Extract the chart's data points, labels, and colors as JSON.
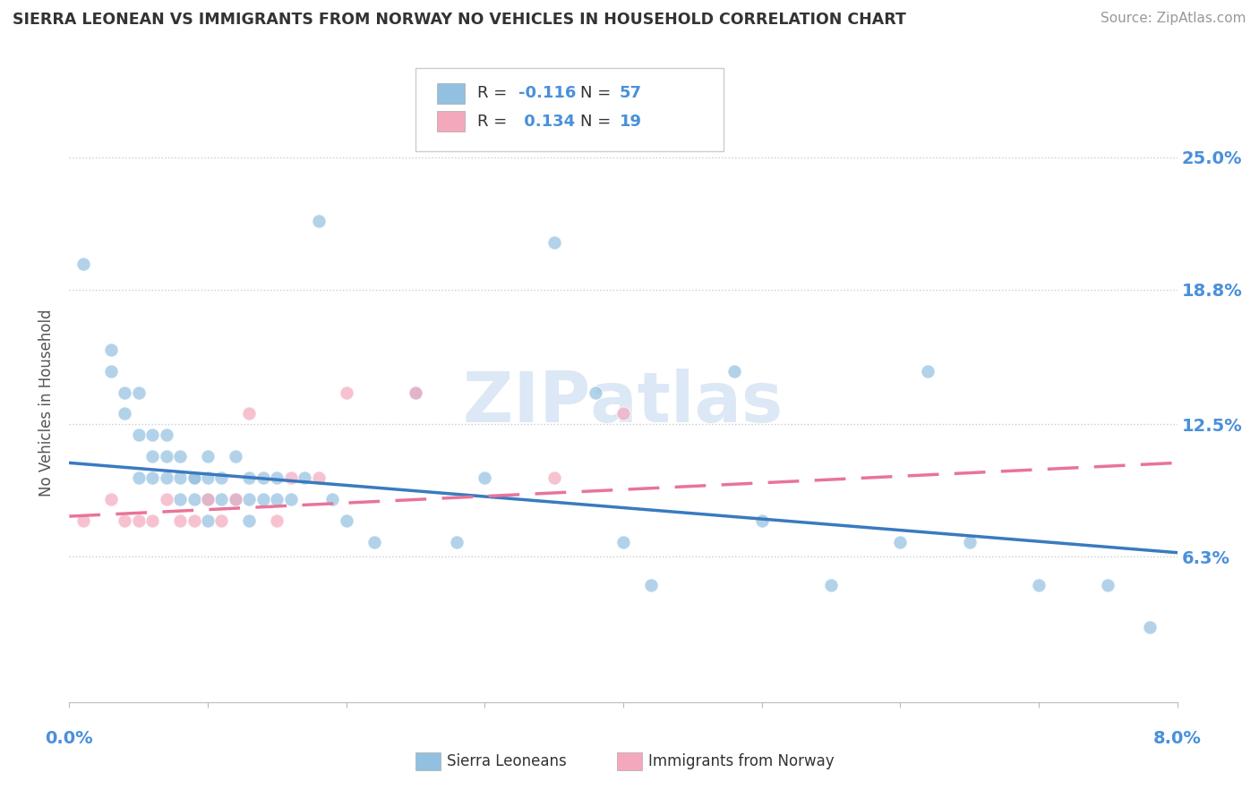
{
  "title": "SIERRA LEONEAN VS IMMIGRANTS FROM NORWAY NO VEHICLES IN HOUSEHOLD CORRELATION CHART",
  "source": "Source: ZipAtlas.com",
  "ylabel": "No Vehicles in Household",
  "ytick_labels": [
    "6.3%",
    "12.5%",
    "18.8%",
    "25.0%"
  ],
  "ytick_values": [
    0.063,
    0.125,
    0.188,
    0.25
  ],
  "xlim": [
    0.0,
    0.08
  ],
  "ylim": [
    -0.005,
    0.275
  ],
  "color_blue": "#92c0e0",
  "color_pink": "#f4a8bc",
  "color_line_blue": "#3a7abf",
  "color_line_pink": "#e8749a",
  "color_label": "#4a90d9",
  "color_grid": "#cccccc",
  "watermark_color": "#dce8f5",
  "sierra_x": [
    0.001,
    0.003,
    0.003,
    0.004,
    0.004,
    0.005,
    0.005,
    0.005,
    0.006,
    0.006,
    0.006,
    0.007,
    0.007,
    0.007,
    0.008,
    0.008,
    0.008,
    0.009,
    0.009,
    0.009,
    0.01,
    0.01,
    0.01,
    0.01,
    0.011,
    0.011,
    0.012,
    0.012,
    0.013,
    0.013,
    0.013,
    0.014,
    0.014,
    0.015,
    0.015,
    0.016,
    0.017,
    0.018,
    0.019,
    0.02,
    0.022,
    0.025,
    0.028,
    0.03,
    0.035,
    0.038,
    0.04,
    0.042,
    0.048,
    0.05,
    0.055,
    0.06,
    0.062,
    0.065,
    0.07,
    0.075,
    0.078
  ],
  "sierra_y": [
    0.2,
    0.16,
    0.15,
    0.14,
    0.13,
    0.14,
    0.12,
    0.1,
    0.12,
    0.11,
    0.1,
    0.12,
    0.11,
    0.1,
    0.11,
    0.1,
    0.09,
    0.1,
    0.1,
    0.09,
    0.11,
    0.1,
    0.09,
    0.08,
    0.1,
    0.09,
    0.11,
    0.09,
    0.1,
    0.09,
    0.08,
    0.1,
    0.09,
    0.1,
    0.09,
    0.09,
    0.1,
    0.22,
    0.09,
    0.08,
    0.07,
    0.14,
    0.07,
    0.1,
    0.21,
    0.14,
    0.07,
    0.05,
    0.15,
    0.08,
    0.05,
    0.07,
    0.15,
    0.07,
    0.05,
    0.05,
    0.03
  ],
  "norway_x": [
    0.001,
    0.003,
    0.004,
    0.005,
    0.006,
    0.007,
    0.008,
    0.009,
    0.01,
    0.011,
    0.012,
    0.013,
    0.015,
    0.016,
    0.018,
    0.02,
    0.025,
    0.035,
    0.04
  ],
  "norway_y": [
    0.08,
    0.09,
    0.08,
    0.08,
    0.08,
    0.09,
    0.08,
    0.08,
    0.09,
    0.08,
    0.09,
    0.13,
    0.08,
    0.1,
    0.1,
    0.14,
    0.14,
    0.1,
    0.13
  ],
  "trend_blue_x0": 0.0,
  "trend_blue_x1": 0.08,
  "trend_blue_y0": 0.107,
  "trend_blue_y1": 0.065,
  "trend_pink_x0": 0.0,
  "trend_pink_x1": 0.08,
  "trend_pink_y0": 0.082,
  "trend_pink_y1": 0.107
}
